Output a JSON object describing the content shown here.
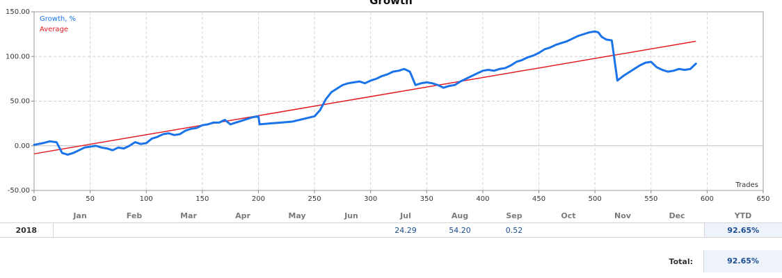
{
  "chart_data": {
    "type": "line",
    "title": "Growth",
    "xlabel": "Trades",
    "ylabel": "",
    "xlim": [
      0,
      650
    ],
    "ylim": [
      -50,
      150
    ],
    "x_ticks": [
      "0",
      "50",
      "100",
      "150",
      "200",
      "250",
      "300",
      "350",
      "400",
      "450",
      "500",
      "550",
      "600",
      "650"
    ],
    "y_ticks": [
      "150.00",
      "100.00",
      "50.00",
      "0.00",
      "-50.00"
    ],
    "grid": true,
    "legend_position": "top-left",
    "series": [
      {
        "name": "Growth, %",
        "color": "#1a73e8",
        "x": [
          0,
          8,
          14,
          20,
          25,
          30,
          35,
          40,
          45,
          50,
          55,
          60,
          65,
          70,
          75,
          80,
          85,
          90,
          95,
          100,
          105,
          110,
          115,
          120,
          125,
          130,
          135,
          140,
          145,
          150,
          155,
          160,
          165,
          170,
          175,
          180,
          185,
          190,
          195,
          200,
          201,
          210,
          220,
          230,
          240,
          250,
          255,
          260,
          265,
          270,
          275,
          280,
          285,
          290,
          295,
          300,
          305,
          310,
          315,
          320,
          325,
          330,
          335,
          340,
          345,
          350,
          355,
          360,
          365,
          370,
          375,
          380,
          385,
          390,
          395,
          400,
          405,
          410,
          415,
          420,
          425,
          430,
          435,
          440,
          445,
          450,
          455,
          460,
          465,
          470,
          475,
          480,
          485,
          490,
          495,
          500,
          503,
          506,
          510,
          515,
          520,
          522,
          525,
          530,
          535,
          540,
          545,
          550,
          555,
          560,
          565,
          570,
          575,
          580,
          585,
          590
        ],
        "y": [
          1,
          3,
          5,
          4,
          -8,
          -10,
          -8,
          -5,
          -2,
          -1,
          0,
          -2,
          -3,
          -5,
          -2,
          -3,
          0,
          4,
          2,
          3,
          8,
          10,
          13,
          14,
          12,
          13,
          17,
          19,
          20,
          23,
          24,
          26,
          26,
          29,
          24,
          26,
          28,
          30,
          32,
          33,
          24,
          25,
          26,
          27,
          30,
          33,
          40,
          52,
          60,
          64,
          68,
          70,
          71,
          72,
          70,
          73,
          75,
          78,
          80,
          83,
          84,
          86,
          83,
          68,
          70,
          71,
          70,
          68,
          65,
          67,
          68,
          72,
          75,
          78,
          81,
          84,
          85,
          84,
          86,
          87,
          90,
          94,
          96,
          99,
          101,
          104,
          108,
          110,
          113,
          115,
          117,
          120,
          123,
          125,
          127,
          128,
          127,
          122,
          119,
          118,
          73,
          75,
          78,
          82,
          86,
          90,
          93,
          94,
          88,
          85,
          83,
          84,
          86,
          85,
          86,
          92
        ]
      },
      {
        "name": "Average",
        "color": "#e31b23",
        "x": [
          0,
          590
        ],
        "y": [
          -9,
          117
        ]
      }
    ]
  },
  "table": {
    "months": [
      "Jan",
      "Feb",
      "Mar",
      "Apr",
      "May",
      "Jun",
      "Jul",
      "Aug",
      "Sep",
      "Oct",
      "Nov",
      "Dec"
    ],
    "ytd_header": "YTD",
    "rows": [
      {
        "year": "2018",
        "values": [
          "",
          "",
          "",
          "",
          "",
          "",
          "24.29",
          "54.20",
          "0.52",
          "",
          "",
          ""
        ],
        "ytd": "92.65%"
      }
    ],
    "total_label": "Total:",
    "total_value": "92.65%"
  }
}
